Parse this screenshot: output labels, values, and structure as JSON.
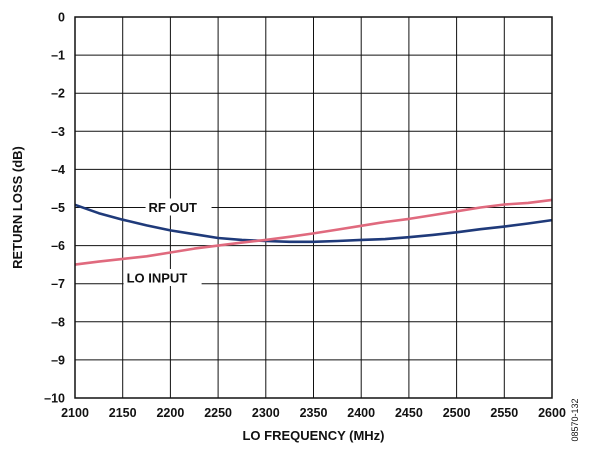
{
  "figure_id": "08570-132",
  "chart_data": {
    "type": "line",
    "title": "",
    "xlabel": "LO FREQUENCY (MHz)",
    "ylabel": "RETURN LOSS (dB)",
    "xlim": [
      2100,
      2600
    ],
    "ylim": [
      -10,
      0
    ],
    "xticks": [
      2100,
      2150,
      2200,
      2250,
      2300,
      2350,
      2400,
      2450,
      2500,
      2550,
      2600
    ],
    "yticks": [
      0,
      -1,
      -2,
      -3,
      -4,
      -5,
      -6,
      -7,
      -8,
      -9,
      -10
    ],
    "ytick_labels": [
      "0",
      "–1",
      "–2",
      "–3",
      "–4",
      "–5",
      "–6",
      "–7",
      "–8",
      "–9",
      "–10"
    ],
    "grid": true,
    "series": [
      {
        "name": "RF OUT",
        "color": "#1f3a7a",
        "x": [
          2100,
          2125,
          2150,
          2175,
          2200,
          2225,
          2250,
          2275,
          2300,
          2325,
          2350,
          2375,
          2400,
          2425,
          2450,
          2475,
          2500,
          2525,
          2550,
          2575,
          2600
        ],
        "y": [
          -4.93,
          -5.15,
          -5.32,
          -5.47,
          -5.6,
          -5.7,
          -5.8,
          -5.85,
          -5.88,
          -5.9,
          -5.9,
          -5.88,
          -5.85,
          -5.83,
          -5.78,
          -5.72,
          -5.65,
          -5.57,
          -5.5,
          -5.42,
          -5.33
        ]
      },
      {
        "name": "LO INPUT",
        "color": "#e06a7e",
        "x": [
          2100,
          2125,
          2150,
          2175,
          2200,
          2225,
          2250,
          2275,
          2300,
          2325,
          2350,
          2375,
          2400,
          2425,
          2450,
          2475,
          2500,
          2525,
          2550,
          2575,
          2600
        ],
        "y": [
          -6.5,
          -6.42,
          -6.35,
          -6.28,
          -6.18,
          -6.08,
          -6.0,
          -5.92,
          -5.85,
          -5.77,
          -5.68,
          -5.58,
          -5.48,
          -5.38,
          -5.3,
          -5.2,
          -5.1,
          -5.0,
          -4.92,
          -4.88,
          -4.8
        ]
      }
    ],
    "annotations": [
      {
        "text": "RF OUT",
        "points_to": "RF OUT"
      },
      {
        "text": "LO INPUT",
        "points_to": "LO INPUT"
      }
    ]
  }
}
